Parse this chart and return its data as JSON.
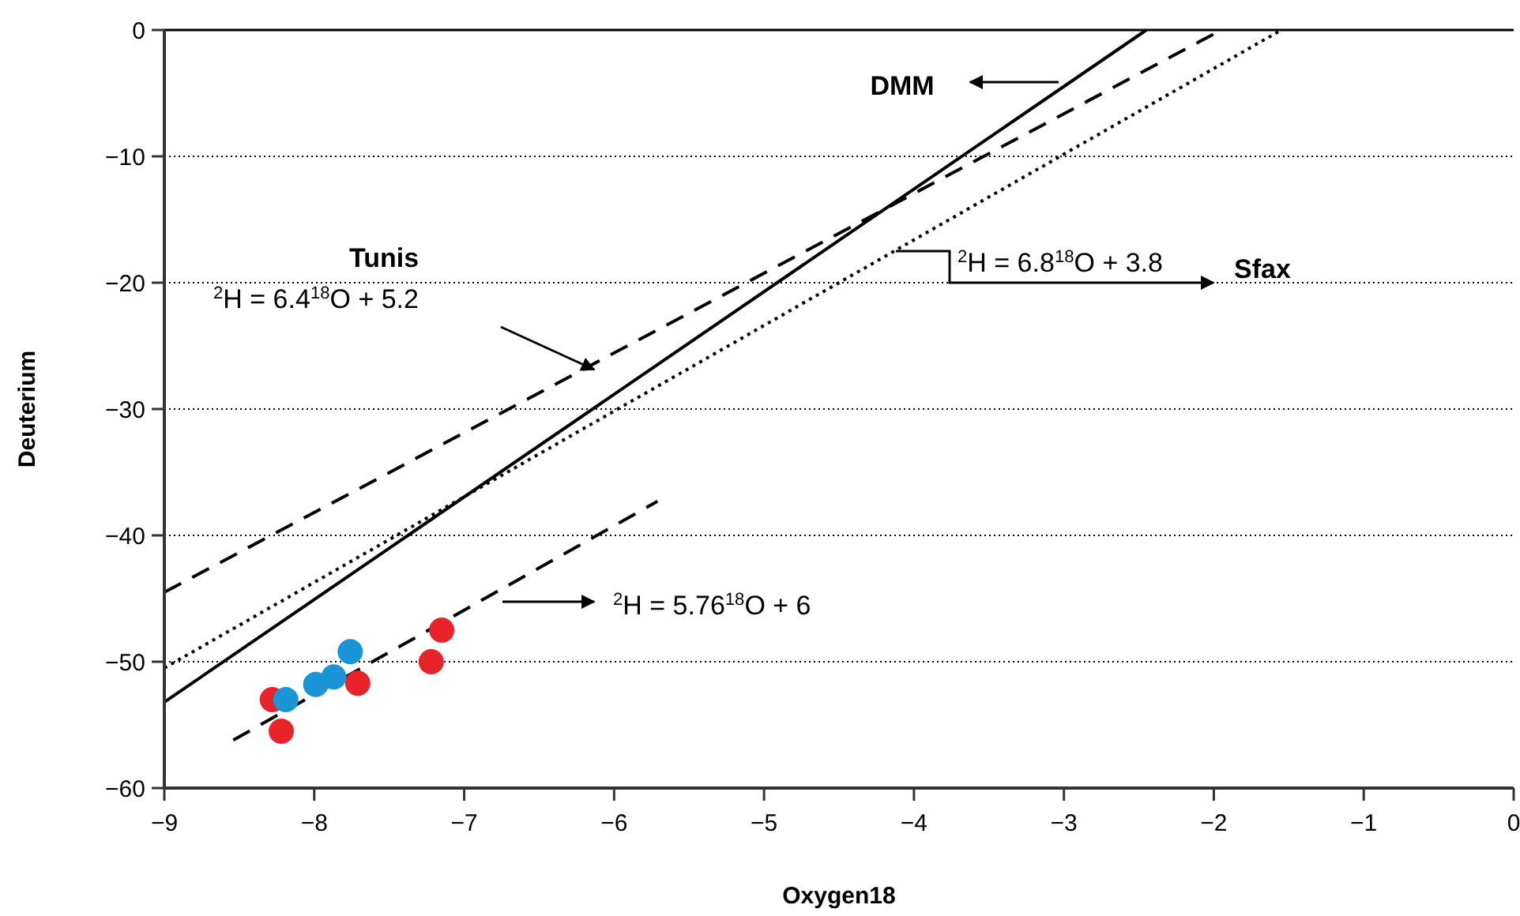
{
  "chart_data": {
    "type": "line",
    "xlabel": "Oxygen18",
    "ylabel": "Deuterium",
    "xlim": [
      -9,
      0
    ],
    "ylim": [
      -60,
      0
    ],
    "xticks": [
      {
        "value": -9,
        "label": "−9"
      },
      {
        "value": -8,
        "label": "−8"
      },
      {
        "value": -7,
        "label": "−7"
      },
      {
        "value": -6,
        "label": "−6"
      },
      {
        "value": -5,
        "label": "−5"
      },
      {
        "value": -4,
        "label": "−4"
      },
      {
        "value": -3,
        "label": "−3"
      },
      {
        "value": -2,
        "label": "−2"
      },
      {
        "value": -1,
        "label": "−1"
      },
      0
    ],
    "yticks": [
      {
        "value": -60,
        "label": "−60"
      },
      {
        "value": -50,
        "label": "−50"
      },
      {
        "value": -40,
        "label": "−40"
      },
      {
        "value": -30,
        "label": "−30"
      },
      {
        "value": -20,
        "label": "−20"
      },
      {
        "value": -10,
        "label": "−10"
      },
      0
    ],
    "grid": "y",
    "series": [
      {
        "color": "#000000",
        "line_style": "solid",
        "x": [
          -9,
          -2.45
        ],
        "values": [
          -53.2,
          0
        ]
      },
      {
        "color": "#000000",
        "line_style": "dashed",
        "x": [
          -9,
          -1.95
        ],
        "values": [
          -44.5,
          0
        ]
      },
      {
        "color": "#000000",
        "line_style": "dotted",
        "x": [
          -9,
          -1.55
        ],
        "values": [
          -50.5,
          0
        ]
      },
      {
        "color": "#000000",
        "line_style": "dashed",
        "x": [
          -8.54,
          -5.71
        ],
        "values": [
          -56.2,
          -37.3
        ]
      },
      {
        "type": "scatter",
        "color": "#e8232a",
        "marker": "circle",
        "x": [
          -8.28,
          -8.22,
          -7.71,
          -7.22,
          -7.15
        ],
        "values": [
          -53,
          -55.5,
          -51.7,
          -50,
          -47.5
        ]
      },
      {
        "type": "scatter",
        "color": "#1a95d8",
        "marker": "circle",
        "x": [
          -8.19,
          -7.99,
          -7.87,
          -7.76
        ],
        "values": [
          -53,
          -51.8,
          -51.2,
          -49.2
        ]
      }
    ],
    "annotations": [
      "Tunis",
      "$^{2}$H = 6.4$^{18}$O + 5.2",
      "DMM",
      "$^{2}$H = 6.8$^{18}$O + 3.8",
      "Sfax",
      "$^{2}$H = 5.76$^{18}$O + 6"
    ]
  }
}
